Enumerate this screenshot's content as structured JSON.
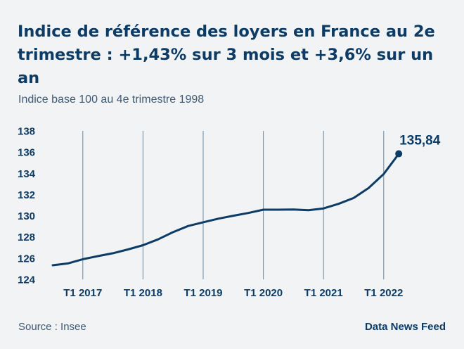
{
  "title": "Indice de référence des loyers en France au 2e trimestre : +1,43% sur 3 mois et +3,6% sur un an",
  "subtitle": "Indice base 100 au 4e trimestre 1998",
  "source": "Source : Insee",
  "brand": "Data News Feed",
  "colors": {
    "line": "#0c3b66",
    "gridline": "#6b879e",
    "background": "#f1f3f5"
  },
  "chart_data": {
    "type": "line",
    "ylim": [
      124,
      138
    ],
    "y_ticks": [
      138,
      136,
      134,
      132,
      130,
      128,
      126,
      124
    ],
    "x_ticks": [
      "T1 2017",
      "T1 2018",
      "T1 2019",
      "T1 2020",
      "T1 2021",
      "T1 2022"
    ],
    "grid": "vertical lines at each T1 tick",
    "last_value_label": "135,84",
    "series": [
      {
        "x": [
          "T3 2016",
          "T4 2016",
          "T1 2017",
          "T2 2017",
          "T3 2017",
          "T4 2017",
          "T1 2018",
          "T2 2018",
          "T3 2018",
          "T4 2018",
          "T1 2019",
          "T2 2019",
          "T3 2019",
          "T4 2019",
          "T1 2020",
          "T2 2020",
          "T3 2020",
          "T4 2020",
          "T1 2021",
          "T2 2021",
          "T3 2021",
          "T4 2021",
          "T1 2022",
          "T2 2022"
        ],
        "values": [
          125.33,
          125.5,
          125.9,
          126.19,
          126.46,
          126.82,
          127.22,
          127.77,
          128.45,
          129.03,
          129.38,
          129.72,
          130.0,
          130.26,
          130.57,
          130.57,
          130.59,
          130.52,
          130.69,
          131.12,
          131.67,
          132.62,
          133.93,
          135.84
        ]
      }
    ]
  }
}
